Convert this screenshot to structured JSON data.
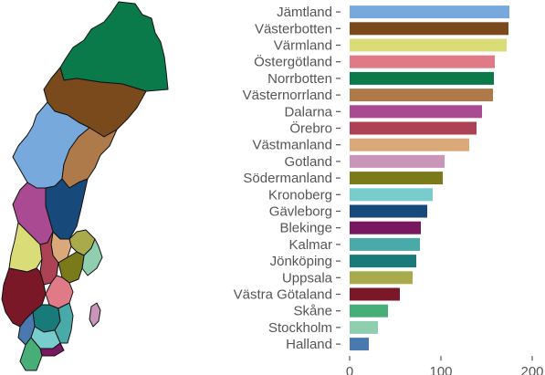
{
  "chart_data": {
    "type": "bar",
    "orientation": "horizontal",
    "title": "",
    "xlabel": "",
    "ylabel": "",
    "xlim": [
      0,
      200
    ],
    "xticks": [
      0,
      100,
      200
    ],
    "grid": false,
    "legend": "none",
    "categories": [
      "Jämtland",
      "Västerbotten",
      "Värmland",
      "Östergötland",
      "Norrbotten",
      "Västernorrland",
      "Dalarna",
      "Örebro",
      "Västmanland",
      "Gotland",
      "Södermanland",
      "Kronoberg",
      "Gävleborg",
      "Blekinge",
      "Kalmar",
      "Jönköping",
      "Uppsala",
      "Västra Götaland",
      "Skåne",
      "Stockholm",
      "Halland"
    ],
    "values": [
      175,
      174,
      172,
      159,
      158,
      157,
      145,
      139,
      131,
      104,
      102,
      91,
      85,
      78,
      77,
      73,
      69,
      55,
      42,
      31,
      21
    ],
    "colors": [
      "#77a9dc",
      "#7b4a1c",
      "#dadc78",
      "#e07a87",
      "#0a7a4a",
      "#ae7a4a",
      "#aa4a93",
      "#ad4254",
      "#dba879",
      "#c995b8",
      "#7a7a1a",
      "#78cdcc",
      "#174a7a",
      "#781860",
      "#4aaaaa",
      "#197a7a",
      "#a9aa4b",
      "#7b1828",
      "#48ae78",
      "#8fcfaf",
      "#4979ae"
    ]
  }
}
